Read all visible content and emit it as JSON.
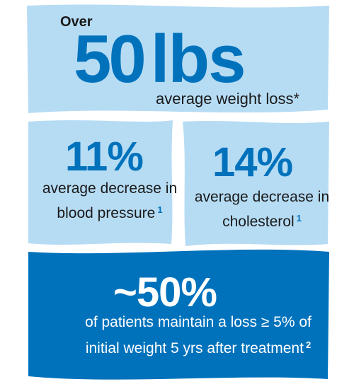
{
  "colors": {
    "panel_light": "#b6dcf4",
    "panel_dark": "#0072bc",
    "accent_blue": "#0072bc",
    "text_dark": "#1a1a1a",
    "text_white": "#ffffff"
  },
  "weight": {
    "prefix": "Over",
    "number": "50",
    "unit": "lbs",
    "label": "average weight loss*"
  },
  "blood_pressure": {
    "value": "11%",
    "line1": "average decrease in",
    "line2": "blood pressure",
    "ref": "1"
  },
  "cholesterol": {
    "value": "14%",
    "line1": "average decrease in",
    "line2": "cholesterol",
    "ref": "1"
  },
  "maintenance": {
    "value": "~50%",
    "line1": "of patients maintain a loss ≥ 5% of",
    "line2": "initial weight 5 yrs after treatment",
    "ref": "2"
  }
}
